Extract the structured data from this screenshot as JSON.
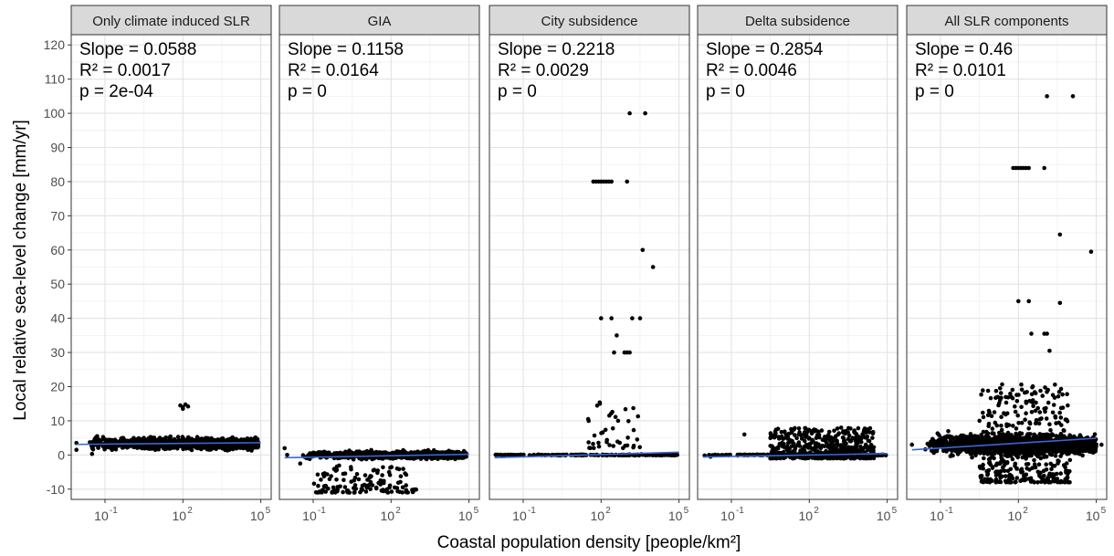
{
  "chart_data": {
    "type": "scatter",
    "xlabel": "Coastal population density [people/km²]",
    "ylabel": "Local relative sea-level change [mm/yr]",
    "x_scale": "log10",
    "xlim_log10": [
      -2.3,
      5.4
    ],
    "ylim": [
      -13,
      123
    ],
    "y_ticks": [
      -10,
      0,
      10,
      20,
      30,
      40,
      50,
      60,
      70,
      80,
      90,
      100,
      110,
      120
    ],
    "y_tick_labels": [
      "-10",
      "0",
      "10",
      "20",
      "30",
      "40",
      "50",
      "60",
      "70",
      "80",
      "90",
      "100",
      "110",
      "120"
    ],
    "x_ticks_log10": [
      -1,
      2,
      5
    ],
    "x_tick_labels": [
      "10",
      "10",
      "10"
    ],
    "x_tick_exponents": [
      "-1",
      "2",
      "5"
    ],
    "grid": true,
    "point_color": "#000000",
    "fit_line_color": "#3a66d6",
    "panels": [
      {
        "name": "Only climate induced SLR",
        "stats": {
          "slope": "Slope =  0.0588",
          "r2": "R² =  0.0017",
          "p": "p =  2e-04"
        },
        "fit": {
          "x_log10": [
            -2.1,
            5.0
          ],
          "y": [
            3.1,
            3.6
          ]
        },
        "cloud": {
          "x_min": -1.6,
          "x_max": 4.9,
          "y_center": 3.3,
          "y_spread": 3.5,
          "n": 1100
        },
        "outliers": [
          [
            -2.1,
            1.5
          ],
          [
            -2.1,
            3.5
          ],
          [
            -1.5,
            0.3
          ],
          [
            -1.3,
            5.5
          ],
          [
            1.9,
            14.5
          ],
          [
            2.0,
            14.0
          ],
          [
            2.1,
            14.8
          ],
          [
            2.2,
            14.2
          ],
          [
            2.0,
            13.5
          ],
          [
            4.5,
            2.0
          ],
          [
            4.9,
            3.0
          ]
        ]
      },
      {
        "name": "GIA",
        "stats": {
          "slope": "Slope =  0.1158",
          "r2": "R² =  0.0164",
          "p": "p =  0"
        },
        "fit": {
          "x_log10": [
            -2.1,
            5.0
          ],
          "y": [
            -0.8,
            0.2
          ]
        },
        "cloud": {
          "x_min": -1.4,
          "x_max": 4.9,
          "y_center": 0.0,
          "y_spread": 2.2,
          "n": 900
        },
        "sub_clusters": [
          {
            "x_min": -1.0,
            "x_max": 3.0,
            "y_min": -11,
            "y_max": -3,
            "n": 130
          }
        ],
        "outliers": [
          [
            -2.1,
            2.0
          ],
          [
            -2.0,
            0.0
          ],
          [
            -1.5,
            -2.5
          ]
        ]
      },
      {
        "name": "City subsidence",
        "stats": {
          "slope": "Slope =  0.2218",
          "r2": "R² =  0.0029",
          "p": "p =  0"
        },
        "fit": {
          "x_log10": [
            -2.1,
            5.0
          ],
          "y": [
            -0.8,
            0.8
          ]
        },
        "cloud": {
          "x_min": -2.1,
          "x_max": 5.0,
          "y_center": 0.0,
          "y_spread": 0.3,
          "n": 200
        },
        "sub_clusters": [
          {
            "x_min": 1.5,
            "x_max": 3.5,
            "y_min": 2,
            "y_max": 16,
            "n": 40
          }
        ],
        "outliers": [
          [
            1.7,
            80.0
          ],
          [
            1.8,
            80.0
          ],
          [
            1.9,
            80.0
          ],
          [
            2.0,
            80.0
          ],
          [
            2.1,
            80.0
          ],
          [
            2.2,
            80.0
          ],
          [
            2.3,
            80.0
          ],
          [
            2.4,
            80.0
          ],
          [
            3.0,
            80.0
          ],
          [
            3.1,
            100.0
          ],
          [
            3.7,
            100.0
          ],
          [
            3.6,
            60.0
          ],
          [
            4.0,
            55.0
          ],
          [
            2.0,
            40.0
          ],
          [
            2.4,
            40.0
          ],
          [
            3.2,
            40.0
          ],
          [
            3.5,
            40.0
          ],
          [
            2.5,
            30.0
          ],
          [
            2.9,
            30.0
          ],
          [
            3.0,
            30.0
          ],
          [
            3.1,
            30.0
          ],
          [
            1.5,
            10.5
          ],
          [
            2.6,
            35.0
          ]
        ]
      },
      {
        "name": "Delta subsidence",
        "stats": {
          "slope": "Slope =  0.2854",
          "r2": "R² =  0.0046",
          "p": "p =  0"
        },
        "fit": {
          "x_log10": [
            -2.1,
            5.0
          ],
          "y": [
            -0.6,
            0.4
          ]
        },
        "cloud": {
          "x_min": -2.1,
          "x_max": 5.0,
          "y_center": 0.0,
          "y_spread": 0.3,
          "n": 220
        },
        "sub_clusters": [
          {
            "x_min": 0.5,
            "x_max": 4.5,
            "y_min": -1,
            "y_max": 8,
            "n": 500
          }
        ],
        "outliers": [
          [
            -0.5,
            6.0
          ],
          [
            -1.8,
            -0.5
          ]
        ]
      },
      {
        "name": "All SLR components",
        "stats": {
          "slope": "Slope =  0.46",
          "r2": "R² =  0.0101",
          "p": "p =  0"
        },
        "fit": {
          "x_log10": [
            -2.1,
            5.0
          ],
          "y": [
            1.5,
            4.9
          ]
        },
        "cloud": {
          "x_min": -1.6,
          "x_max": 5.0,
          "y_center": 3.0,
          "y_spread": 6.0,
          "n": 1400
        },
        "sub_clusters": [
          {
            "x_min": 0.5,
            "x_max": 4.0,
            "y_min": -8,
            "y_max": 21,
            "n": 400
          }
        ],
        "outliers": [
          [
            1.8,
            84.0
          ],
          [
            1.9,
            84.0
          ],
          [
            2.0,
            84.0
          ],
          [
            2.1,
            84.0
          ],
          [
            2.2,
            84.0
          ],
          [
            2.3,
            84.0
          ],
          [
            2.4,
            84.0
          ],
          [
            3.0,
            84.0
          ],
          [
            3.1,
            105.0
          ],
          [
            4.1,
            105.0
          ],
          [
            3.6,
            64.5
          ],
          [
            4.8,
            59.5
          ],
          [
            2.0,
            45.0
          ],
          [
            2.4,
            45.0
          ],
          [
            3.6,
            44.5
          ],
          [
            3.0,
            35.5
          ],
          [
            3.1,
            35.5
          ],
          [
            2.5,
            35.5
          ],
          [
            3.2,
            30.5
          ],
          [
            -2.1,
            3.0
          ],
          [
            5.2,
            3.0
          ]
        ]
      }
    ]
  }
}
